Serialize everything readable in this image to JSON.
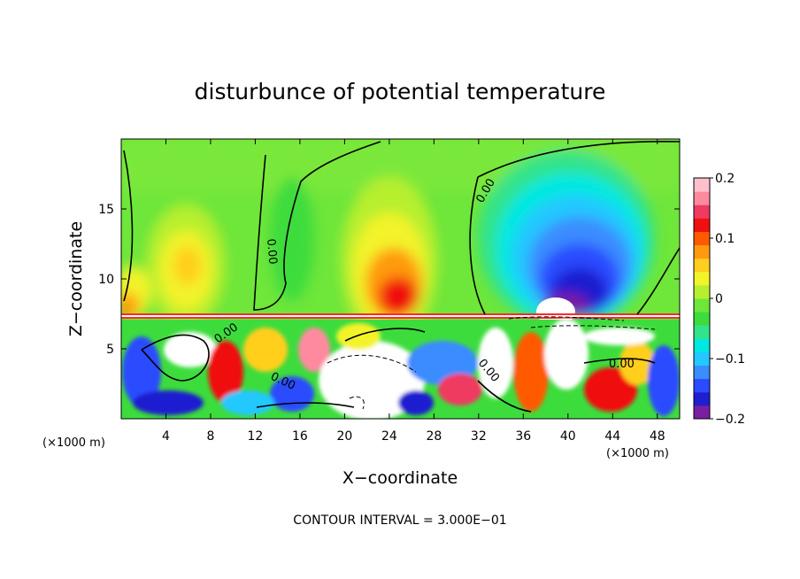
{
  "chart_data": {
    "type": "heatmap",
    "title": "disturbunce of potential temperature",
    "xlabel": "X−coordinate",
    "ylabel": "Z−coordinate",
    "x_unit": "(×1000 m)",
    "x_unit_right": "(×1000 m)",
    "xlim": [
      0,
      50
    ],
    "ylim": [
      0,
      20
    ],
    "x_ticks": [
      4,
      8,
      12,
      16,
      20,
      24,
      28,
      32,
      36,
      40,
      44,
      48
    ],
    "y_ticks": [
      5,
      10,
      15
    ],
    "footer": "CONTOUR INTERVAL = 3.000E−01",
    "colorbar": {
      "ticks": [
        "0.2",
        "0.1",
        "0",
        "−0.1",
        "−0.2"
      ],
      "tick_values": [
        0.2,
        0.1,
        0,
        -0.1,
        -0.2
      ],
      "range": [
        -0.2,
        0.2
      ],
      "colors": [
        "#7a1fa2",
        "#1f1fd0",
        "#2a4bff",
        "#3a8cff",
        "#22c8ff",
        "#00e8e0",
        "#33e38a",
        "#3ddc3d",
        "#6ee63a",
        "#b7ef2e",
        "#f3f32a",
        "#ffcf1f",
        "#ff9a10",
        "#ff5a00",
        "#f01010",
        "#f03a60",
        "#ff8aa0",
        "#ffc0cc"
      ]
    },
    "contour_labels": [
      "0.00",
      "0.00",
      "0.00",
      "0.00",
      "0.00",
      "0.00"
    ]
  }
}
